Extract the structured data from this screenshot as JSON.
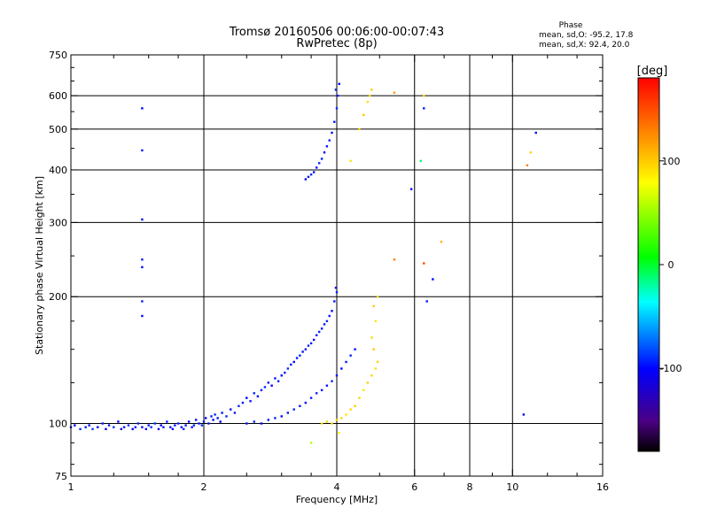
{
  "chart_data": {
    "type": "scatter",
    "title": "Tromsø 20160506 00:06:00-00:07:43",
    "subtitle": "RwPretec (8p)",
    "xlabel": "Frequency [MHz]",
    "ylabel": "Stationary phase Virtual Height [km]",
    "x_scale": "log",
    "y_scale": "log",
    "xlim": [
      1,
      16
    ],
    "ylim": [
      75,
      750
    ],
    "x_ticks": [
      1,
      2,
      4,
      6,
      8,
      10,
      16
    ],
    "x_tick_labels": [
      "1",
      "2",
      "4",
      "6",
      "8",
      "10",
      "16"
    ],
    "x_gridlines": [
      2,
      4,
      6,
      8,
      10
    ],
    "y_ticks": [
      75,
      100,
      200,
      300,
      400,
      500,
      600,
      750
    ],
    "y_tick_labels": [
      "75",
      "100",
      "200",
      "300",
      "400",
      "500",
      "600",
      "750"
    ],
    "y_gridlines": [
      100,
      200,
      300,
      400,
      500,
      600
    ],
    "grid": true,
    "phase_stats": {
      "heading": "Phase",
      "line1": "mean, sd,O: -95.2, 17.8",
      "line2": "mean, sd,X:  92.4, 20.0"
    },
    "colorbar": {
      "label": "[deg]",
      "range": [
        -180,
        180
      ],
      "ticks": [
        100,
        0,
        -100
      ],
      "tick_labels": [
        "100",
        "0",
        "-100"
      ],
      "colormap": "rainbow"
    },
    "series": [
      {
        "points": [
          [
            1.0,
            98,
            -95
          ],
          [
            1.02,
            99,
            -100
          ],
          [
            1.05,
            97,
            -90
          ],
          [
            1.08,
            98,
            -95
          ],
          [
            1.1,
            99,
            -98
          ],
          [
            1.12,
            97,
            -85
          ],
          [
            1.15,
            98,
            -100
          ],
          [
            1.18,
            100,
            -92
          ],
          [
            1.2,
            97,
            -105
          ],
          [
            1.22,
            99,
            -95
          ],
          [
            1.25,
            98,
            -88
          ],
          [
            1.28,
            101,
            -100
          ],
          [
            1.3,
            97,
            -110
          ],
          [
            1.32,
            98,
            -95
          ],
          [
            1.35,
            99,
            -90
          ],
          [
            1.38,
            97,
            -100
          ],
          [
            1.4,
            98,
            -95
          ],
          [
            1.42,
            100,
            -92
          ],
          [
            1.45,
            98,
            -98
          ],
          [
            1.48,
            97,
            -100
          ],
          [
            1.5,
            99,
            -95
          ],
          [
            1.52,
            98,
            -90
          ],
          [
            1.55,
            100,
            -88
          ],
          [
            1.58,
            97,
            -105
          ],
          [
            1.6,
            99,
            -100
          ],
          [
            1.62,
            98,
            -95
          ],
          [
            1.65,
            101,
            -90
          ],
          [
            1.68,
            98,
            -95
          ],
          [
            1.7,
            97,
            -100
          ],
          [
            1.72,
            99,
            -95
          ],
          [
            1.75,
            100,
            -92
          ],
          [
            1.78,
            98,
            -98
          ],
          [
            1.8,
            97,
            -90
          ],
          [
            1.82,
            99,
            -95
          ],
          [
            1.85,
            101,
            -100
          ],
          [
            1.88,
            98,
            -95
          ],
          [
            1.9,
            99,
            -92
          ],
          [
            1.92,
            102,
            -98
          ],
          [
            1.95,
            100,
            -95
          ],
          [
            1.98,
            99,
            -90
          ],
          [
            2.0,
            101,
            -95
          ],
          [
            2.02,
            103,
            -100
          ],
          [
            2.05,
            100,
            -95
          ],
          [
            2.08,
            104,
            -92
          ],
          [
            2.1,
            102,
            -98
          ],
          [
            2.12,
            105,
            -90
          ],
          [
            2.15,
            103,
            -95
          ],
          [
            2.18,
            101,
            -100
          ],
          [
            2.2,
            106,
            -95
          ],
          [
            2.25,
            104,
            -92
          ],
          [
            2.3,
            108,
            -98
          ],
          [
            2.35,
            106,
            -95
          ],
          [
            2.4,
            110,
            -90
          ],
          [
            2.45,
            112,
            -95
          ],
          [
            2.5,
            115,
            -100
          ],
          [
            2.55,
            113,
            -95
          ],
          [
            2.6,
            118,
            -92
          ],
          [
            2.65,
            116,
            -98
          ],
          [
            2.7,
            120,
            -95
          ],
          [
            2.75,
            122,
            -90
          ],
          [
            2.8,
            125,
            -95
          ],
          [
            2.85,
            123,
            -100
          ],
          [
            2.9,
            128,
            -95
          ],
          [
            2.95,
            126,
            -92
          ],
          [
            3.0,
            130,
            -98
          ],
          [
            3.05,
            132,
            -95
          ],
          [
            3.1,
            135,
            -90
          ],
          [
            3.15,
            138,
            -95
          ],
          [
            3.2,
            140,
            -100
          ],
          [
            3.25,
            143,
            -95
          ],
          [
            3.3,
            145,
            -92
          ],
          [
            3.35,
            148,
            -98
          ],
          [
            3.4,
            150,
            -95
          ],
          [
            3.45,
            153,
            -90
          ],
          [
            3.5,
            155,
            -95
          ],
          [
            3.55,
            158,
            -100
          ],
          [
            3.6,
            162,
            -95
          ],
          [
            3.65,
            165,
            -92
          ],
          [
            3.7,
            168,
            -98
          ],
          [
            3.75,
            172,
            -95
          ],
          [
            3.8,
            175,
            -90
          ],
          [
            3.85,
            180,
            -95
          ],
          [
            3.9,
            185,
            -100
          ],
          [
            3.95,
            195,
            -95
          ],
          [
            4.0,
            205,
            -92
          ],
          [
            3.98,
            210,
            -98
          ],
          [
            2.5,
            100,
            -95
          ],
          [
            2.6,
            101,
            -90
          ],
          [
            2.7,
            100,
            -100
          ],
          [
            2.8,
            102,
            -95
          ],
          [
            2.9,
            103,
            -92
          ],
          [
            3.0,
            104,
            -98
          ],
          [
            3.1,
            106,
            -95
          ],
          [
            3.2,
            108,
            -90
          ],
          [
            3.3,
            110,
            -95
          ],
          [
            3.4,
            112,
            -100
          ],
          [
            3.5,
            115,
            -95
          ],
          [
            3.6,
            118,
            -92
          ],
          [
            3.7,
            120,
            -98
          ],
          [
            3.8,
            123,
            -95
          ],
          [
            3.9,
            126,
            -90
          ],
          [
            4.0,
            130,
            -95
          ],
          [
            4.1,
            135,
            -100
          ],
          [
            4.2,
            140,
            -95
          ],
          [
            4.3,
            145,
            -92
          ],
          [
            4.4,
            150,
            -98
          ],
          [
            3.4,
            380,
            -100
          ],
          [
            3.45,
            385,
            -95
          ],
          [
            3.5,
            390,
            -92
          ],
          [
            3.55,
            395,
            -98
          ],
          [
            3.6,
            405,
            -95
          ],
          [
            3.65,
            415,
            -90
          ],
          [
            3.7,
            425,
            -95
          ],
          [
            3.75,
            440,
            -100
          ],
          [
            3.8,
            455,
            -95
          ],
          [
            3.85,
            470,
            -92
          ],
          [
            3.9,
            490,
            -98
          ],
          [
            3.95,
            520,
            -95
          ],
          [
            4.0,
            560,
            -90
          ],
          [
            4.02,
            600,
            -95
          ],
          [
            4.05,
            640,
            -100
          ],
          [
            3.98,
            620,
            -95
          ],
          [
            1.45,
            560,
            -100
          ],
          [
            1.45,
            445,
            -95
          ],
          [
            1.45,
            305,
            -100
          ],
          [
            1.45,
            245,
            -95
          ],
          [
            1.45,
            235,
            -100
          ],
          [
            1.45,
            195,
            -95
          ],
          [
            1.45,
            180,
            -100
          ],
          [
            6.3,
            560,
            -95
          ],
          [
            6.2,
            420,
            -10
          ],
          [
            6.6,
            220,
            -100
          ],
          [
            6.4,
            195,
            -95
          ],
          [
            11.3,
            490,
            -100
          ],
          [
            10.6,
            105,
            -100
          ],
          [
            5.9,
            360,
            -100
          ]
        ]
      },
      {
        "points": [
          [
            3.7,
            100,
            90
          ],
          [
            3.8,
            101,
            95
          ],
          [
            3.9,
            100,
            92
          ],
          [
            4.0,
            102,
            98
          ],
          [
            4.1,
            103,
            95
          ],
          [
            4.2,
            105,
            90
          ],
          [
            4.3,
            108,
            95
          ],
          [
            4.4,
            110,
            100
          ],
          [
            4.5,
            115,
            95
          ],
          [
            4.6,
            120,
            92
          ],
          [
            4.7,
            125,
            98
          ],
          [
            4.8,
            130,
            95
          ],
          [
            4.9,
            135,
            90
          ],
          [
            4.95,
            140,
            95
          ],
          [
            4.85,
            150,
            100
          ],
          [
            4.8,
            160,
            95
          ],
          [
            4.9,
            175,
            92
          ],
          [
            4.85,
            190,
            98
          ],
          [
            4.95,
            200,
            95
          ],
          [
            4.3,
            420,
            90
          ],
          [
            4.5,
            500,
            95
          ],
          [
            4.6,
            540,
            100
          ],
          [
            4.7,
            580,
            92
          ],
          [
            4.8,
            620,
            98
          ],
          [
            4.75,
            600,
            95
          ],
          [
            5.4,
            610,
            120
          ],
          [
            6.3,
            600,
            95
          ],
          [
            5.4,
            245,
            130
          ],
          [
            6.3,
            240,
            150
          ],
          [
            6.9,
            270,
            110
          ],
          [
            11.0,
            440,
            100
          ],
          [
            10.8,
            410,
            130
          ],
          [
            3.5,
            90,
            60
          ],
          [
            4.05,
            95,
            80
          ]
        ]
      }
    ]
  }
}
